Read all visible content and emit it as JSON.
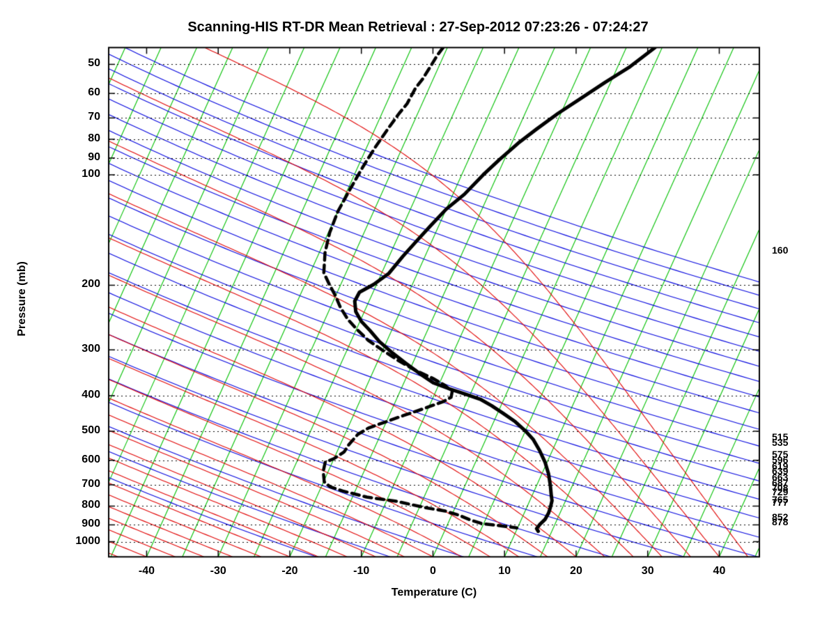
{
  "title": "Scanning-HIS RT-DR Mean Retrieval : 27-Sep-2012 07:23:26 - 07:24:27",
  "axes": {
    "ylabel": "Pressure (mb)",
    "xlabel": "Temperature (C)",
    "pressure_ticks": [
      50,
      60,
      70,
      80,
      90,
      100,
      200,
      300,
      400,
      500,
      600,
      700,
      800,
      900,
      1000
    ],
    "temperature_ticks": [
      -40,
      -30,
      -20,
      -10,
      0,
      10,
      20,
      30,
      40
    ]
  },
  "right_labels": [
    {
      "text": "160",
      "p": 160
    },
    {
      "text": "515",
      "p": 515
    },
    {
      "text": "535",
      "p": 535
    },
    {
      "text": "575",
      "p": 575
    },
    {
      "text": "596",
      "p": 596
    },
    {
      "text": "619",
      "p": 619
    },
    {
      "text": "639",
      "p": 639
    },
    {
      "text": "663",
      "p": 663
    },
    {
      "text": "687",
      "p": 687
    },
    {
      "text": "708",
      "p": 708
    },
    {
      "text": "729",
      "p": 729
    },
    {
      "text": "765",
      "p": 765
    },
    {
      "text": "777",
      "p": 777
    },
    {
      "text": "852",
      "p": 852
    },
    {
      "text": "878",
      "p": 878
    }
  ],
  "chart_data": {
    "type": "line",
    "subtype": "skew-t-log-p",
    "title": "Scanning-HIS RT-DR Mean Retrieval : 27-Sep-2012 07:23:26 - 07:24:27",
    "xlabel": "Temperature (C)",
    "ylabel": "Pressure (mb)",
    "x_range_c": [
      -45.3,
      45.6
    ],
    "pressure_range_mb": [
      45,
      1100
    ],
    "x_ticks": [
      -40,
      -30,
      -20,
      -10,
      0,
      10,
      20,
      30,
      40
    ],
    "pressure_ticks": [
      50,
      60,
      70,
      80,
      90,
      100,
      200,
      300,
      400,
      500,
      600,
      700,
      800,
      900,
      1000
    ],
    "grid": "dotted horizontal lines at pressure ticks",
    "legend": "none",
    "background": {
      "isotherms_every_c": 5,
      "dry_adiabats_every_k": 10,
      "moist_adiabats_every_c": 4
    },
    "colors": {
      "isotherm": "#00c000",
      "dry_adiabat": "#0000dd",
      "moist_adiabat": "#e00000",
      "temperature": "#000000",
      "dewpoint": "#000000",
      "grid": "#000000"
    },
    "series": [
      {
        "name": "temperature",
        "style": "solid",
        "points_t_p": [
          [
            -1,
            45
          ],
          [
            -3.4,
            51
          ],
          [
            -5.8,
            56
          ],
          [
            -8.2,
            62
          ],
          [
            -10.4,
            68
          ],
          [
            -12.4,
            75
          ],
          [
            -14.1,
            82
          ],
          [
            -15.7,
            91
          ],
          [
            -17,
            100
          ],
          [
            -18.4,
            113
          ],
          [
            -20,
            124
          ],
          [
            -21.1,
            137
          ],
          [
            -22.1,
            151
          ],
          [
            -23.1,
            167
          ],
          [
            -24,
            186
          ],
          [
            -25.4,
            199
          ],
          [
            -26.9,
            209
          ],
          [
            -27,
            221
          ],
          [
            -26.2,
            236
          ],
          [
            -24.8,
            251
          ],
          [
            -23,
            266
          ],
          [
            -21,
            285
          ],
          [
            -18.7,
            304
          ],
          [
            -16,
            326
          ],
          [
            -13.4,
            348
          ],
          [
            -10.9,
            369
          ],
          [
            -8.3,
            383
          ],
          [
            -5.9,
            395
          ],
          [
            -3.3,
            409
          ],
          [
            -1.3,
            426
          ],
          [
            0.8,
            447
          ],
          [
            3,
            471
          ],
          [
            5,
            499
          ],
          [
            6.6,
            526
          ],
          [
            8.2,
            564
          ],
          [
            9.7,
            607
          ],
          [
            10.9,
            652
          ],
          [
            11.9,
            702
          ],
          [
            12.7,
            750
          ],
          [
            13.1,
            773
          ],
          [
            13.3,
            807
          ],
          [
            13.4,
            836
          ],
          [
            13.3,
            870
          ],
          [
            12.9,
            897
          ],
          [
            12.7,
            921
          ],
          [
            13.1,
            937
          ]
        ]
      },
      {
        "name": "dewpoint",
        "style": "dashed",
        "points_t_p": [
          [
            -30.6,
            45
          ],
          [
            -30.9,
            47
          ],
          [
            -31.2,
            51
          ],
          [
            -31.5,
            55
          ],
          [
            -31.9,
            58
          ],
          [
            -32.1,
            64
          ],
          [
            -32.6,
            68
          ],
          [
            -33.2,
            75
          ],
          [
            -33.8,
            84
          ],
          [
            -34.3,
            95
          ],
          [
            -34.7,
            110
          ],
          [
            -35,
            126
          ],
          [
            -34.8,
            144
          ],
          [
            -34.2,
            163
          ],
          [
            -33.1,
            185
          ],
          [
            -31.6,
            199
          ],
          [
            -30,
            214
          ],
          [
            -28.6,
            230
          ],
          [
            -26.8,
            248
          ],
          [
            -24.9,
            264
          ],
          [
            -22.6,
            283
          ],
          [
            -20,
            301
          ],
          [
            -17.3,
            320
          ],
          [
            -14.2,
            341
          ],
          [
            -11.2,
            359
          ],
          [
            -9.1,
            375
          ],
          [
            -7.7,
            390
          ],
          [
            -7.5,
            404
          ],
          [
            -8.3,
            415
          ],
          [
            -10.5,
            433
          ],
          [
            -13,
            453
          ],
          [
            -15.7,
            477
          ],
          [
            -17.1,
            490
          ],
          [
            -18.2,
            510
          ],
          [
            -18.8,
            544
          ],
          [
            -19,
            569
          ],
          [
            -20,
            594
          ],
          [
            -21,
            607
          ],
          [
            -20.7,
            643
          ],
          [
            -19.9,
            687
          ],
          [
            -18.8,
            708
          ],
          [
            -16.8,
            727
          ],
          [
            -13,
            756
          ],
          [
            -8.6,
            776
          ],
          [
            -4.3,
            807
          ],
          [
            -1.2,
            825
          ],
          [
            1,
            847
          ],
          [
            3,
            874
          ],
          [
            4.8,
            893
          ],
          [
            7.5,
            905
          ],
          [
            9.9,
            917
          ]
        ]
      }
    ]
  }
}
